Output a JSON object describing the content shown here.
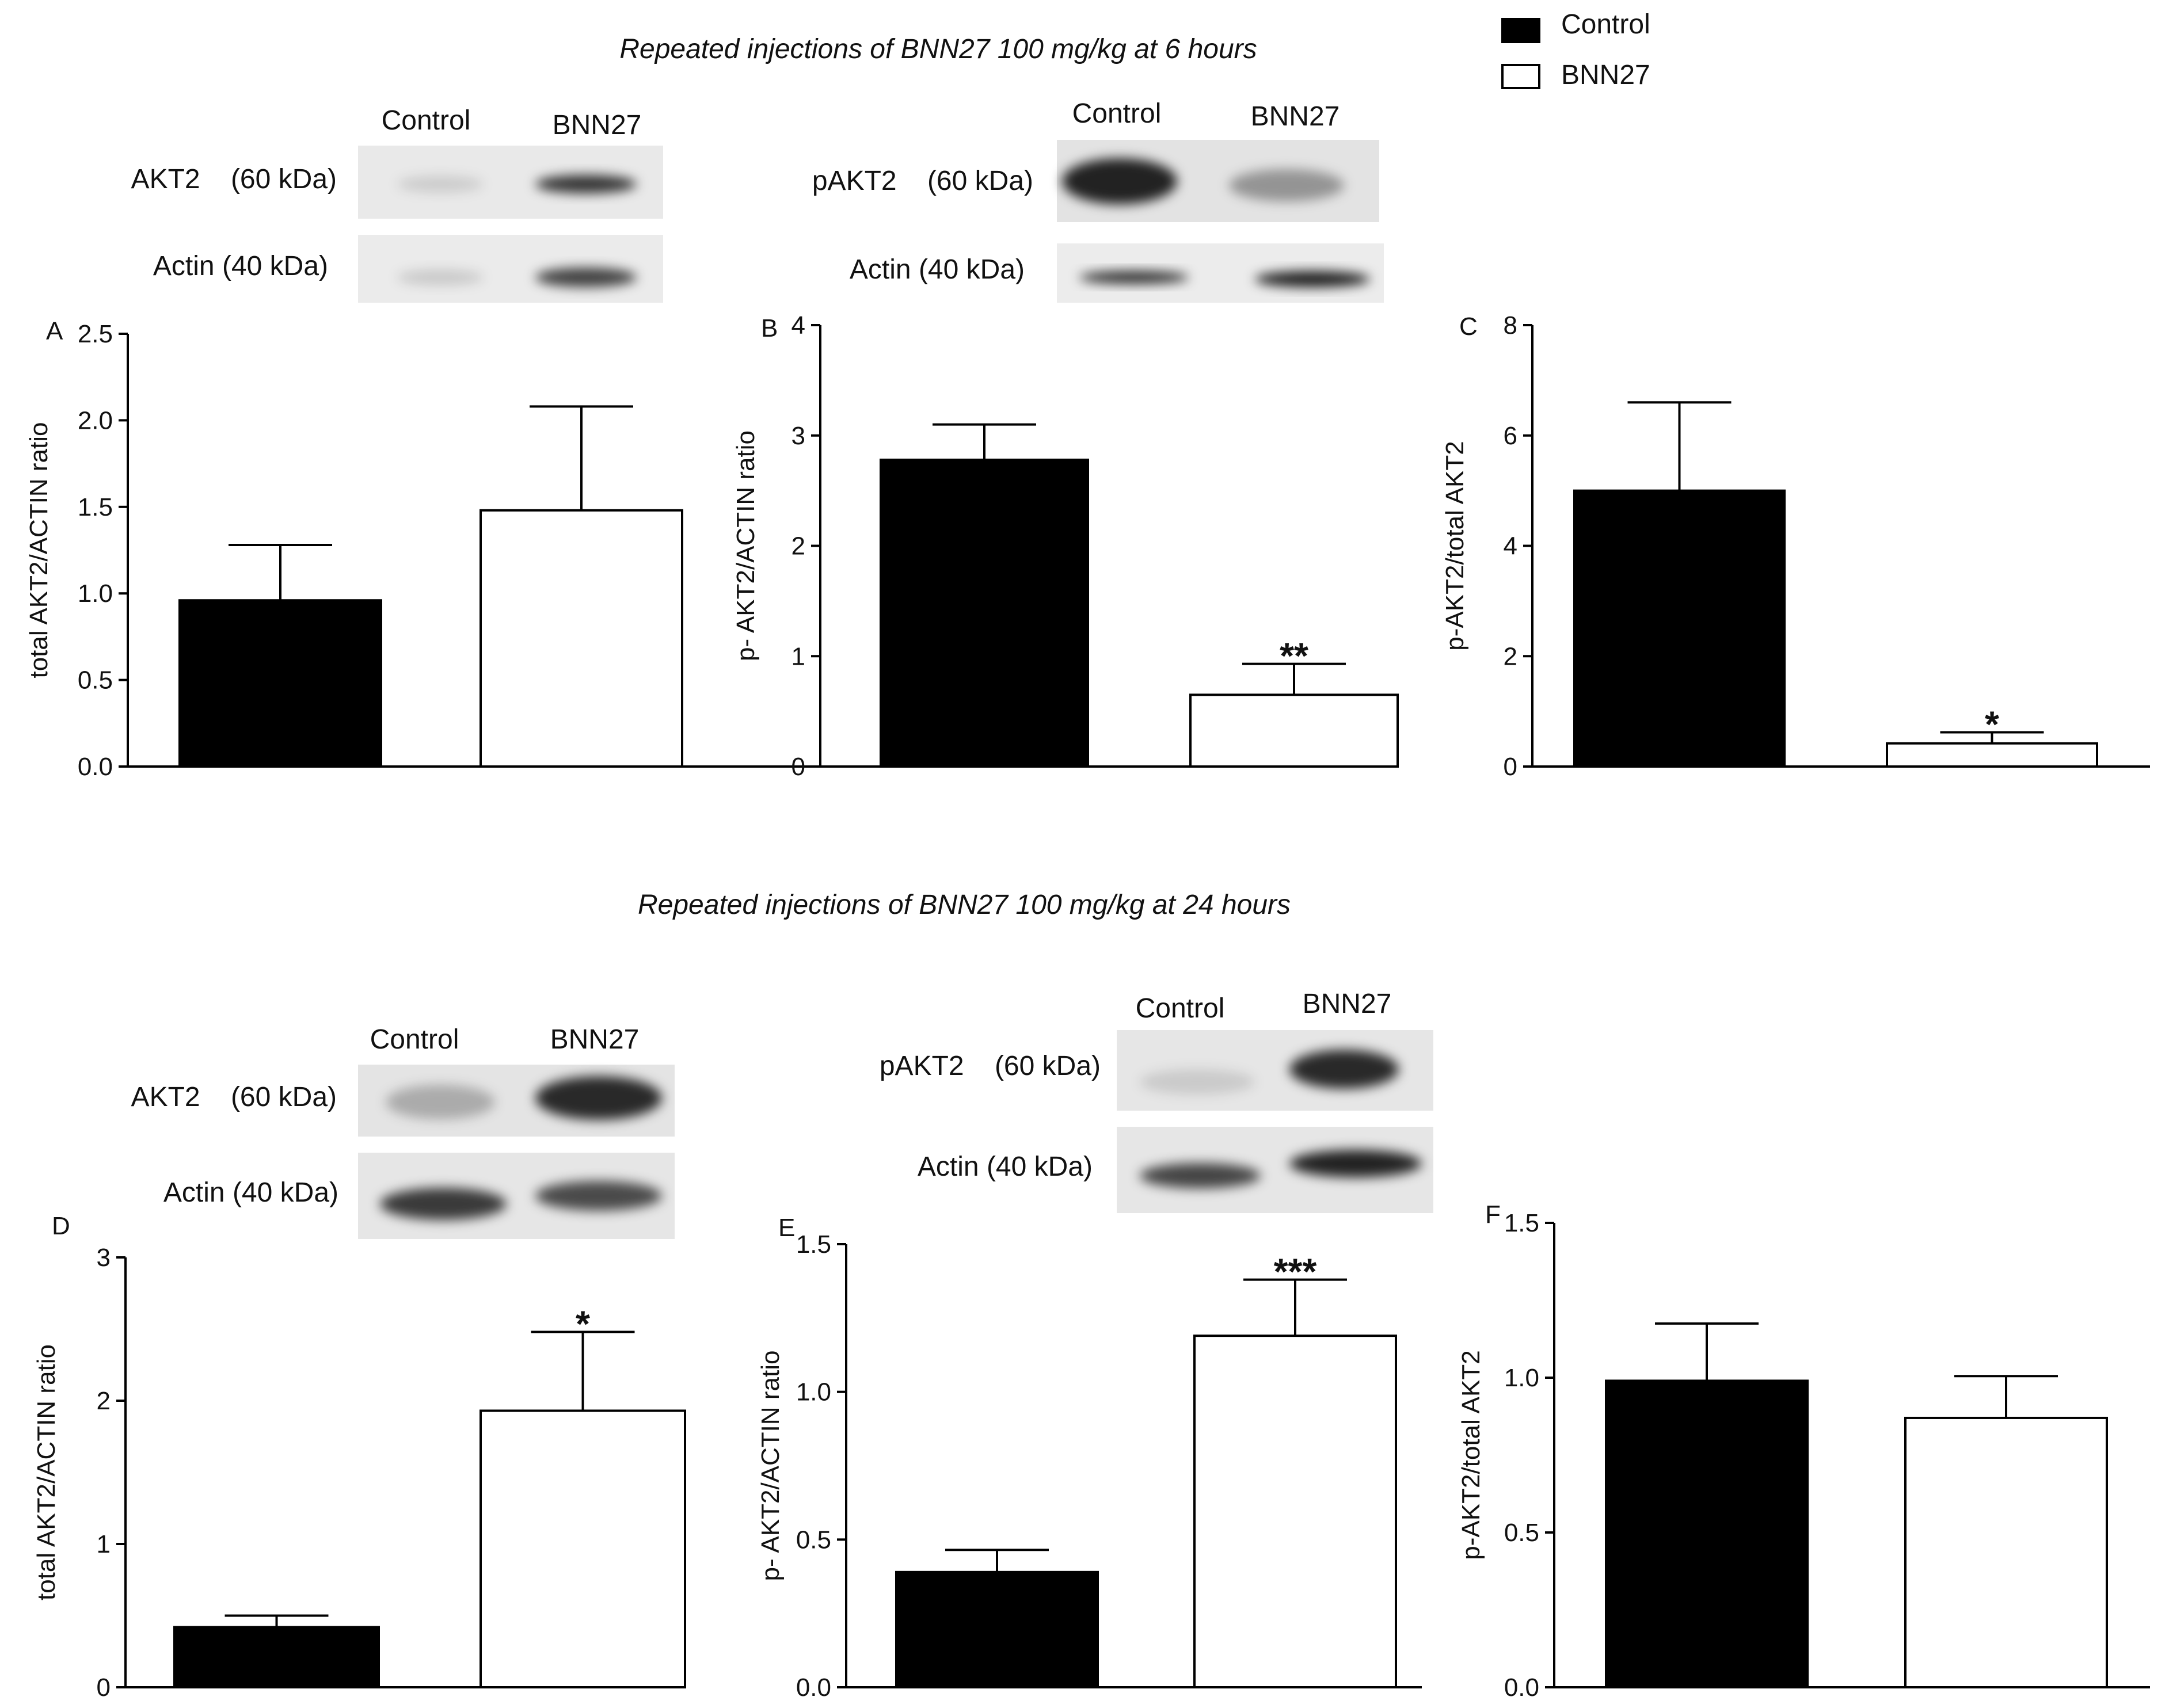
{
  "figure_title_top": "Repeated injections of BNN27 100 mg/kg at 6 hours",
  "figure_title_bottom": "Repeated injections of    BNN27 100 mg/kg at 24 hours",
  "legend": {
    "entries": [
      {
        "label": "Control",
        "fill": "#000000"
      },
      {
        "label": "BNN27",
        "fill": "#ffffff"
      }
    ]
  },
  "blots": [
    {
      "id": "blot-akt2-6h",
      "lanes": [
        "Control",
        "BNN27"
      ],
      "rows": [
        {
          "label": "AKT2    (60 kDa)",
          "intensity": [
            0.12,
            0.78
          ]
        },
        {
          "label": "Actin (40 kDa)",
          "intensity": [
            0.14,
            0.72
          ]
        }
      ]
    },
    {
      "id": "blot-pakt2-6h",
      "lanes": [
        "Control",
        "BNN27"
      ],
      "rows": [
        {
          "label": "pAKT2    (60 kDa)",
          "intensity": [
            0.85,
            0.35
          ]
        },
        {
          "label": "Actin (40 kDa)",
          "intensity": [
            0.82,
            0.88
          ]
        }
      ]
    },
    {
      "id": "blot-akt2-24h",
      "lanes": [
        "Control",
        "BNN27"
      ],
      "rows": [
        {
          "label": "AKT2    (60 kDa)",
          "intensity": [
            0.25,
            0.82
          ]
        },
        {
          "label": "Actin (40 kDa)",
          "intensity": [
            0.75,
            0.68
          ]
        }
      ]
    },
    {
      "id": "blot-pakt2-24h",
      "lanes": [
        "Control",
        "BNN27"
      ],
      "rows": [
        {
          "label": "pAKT2    (60 kDa)",
          "intensity": [
            0.12,
            0.82
          ]
        },
        {
          "label": "Actin (40 kDa)",
          "intensity": [
            0.7,
            0.85
          ]
        }
      ]
    }
  ],
  "chart_data": [
    {
      "panel": "A",
      "type": "bar",
      "title": "",
      "xlabel": "",
      "ylabel": "total AKT2/ACTIN ratio",
      "categories": [
        "Control",
        "BNN27"
      ],
      "series": [
        {
          "name": "ratio",
          "values": [
            0.96,
            1.48
          ]
        }
      ],
      "errors": [
        0.32,
        0.6
      ],
      "significance": [
        "",
        ""
      ],
      "ylim": [
        0,
        2.5
      ],
      "yticks": [
        "0.0",
        "0.5",
        "1.0",
        "1.5",
        "2.0",
        "2.5"
      ],
      "grid": false
    },
    {
      "panel": "B",
      "type": "bar",
      "title": "",
      "xlabel": "",
      "ylabel": "p- AKT2/ACTIN ratio",
      "categories": [
        "Control",
        "BNN27"
      ],
      "series": [
        {
          "name": "ratio",
          "values": [
            2.78,
            0.65
          ]
        }
      ],
      "errors": [
        0.32,
        0.28
      ],
      "significance": [
        "",
        "**"
      ],
      "ylim": [
        0,
        4
      ],
      "yticks": [
        "0",
        "1",
        "2",
        "3",
        "4"
      ],
      "grid": false
    },
    {
      "panel": "C",
      "type": "bar",
      "title": "",
      "xlabel": "",
      "ylabel": "p-AKT2/total AKT2",
      "categories": [
        "Control",
        "BNN27"
      ],
      "series": [
        {
          "name": "ratio",
          "values": [
            5.0,
            0.42
          ]
        }
      ],
      "errors": [
        1.6,
        0.2
      ],
      "significance": [
        "",
        "*"
      ],
      "ylim": [
        0,
        8
      ],
      "yticks": [
        "0",
        "2",
        "4",
        "6",
        "8"
      ],
      "grid": false
    },
    {
      "panel": "D",
      "type": "bar",
      "title": "",
      "xlabel": "",
      "ylabel": "total AKT2/ACTIN ratio",
      "categories": [
        "Control",
        "BNN27"
      ],
      "series": [
        {
          "name": "ratio",
          "values": [
            0.42,
            1.93
          ]
        }
      ],
      "errors": [
        0.08,
        0.55
      ],
      "significance": [
        "",
        "*"
      ],
      "ylim": [
        0,
        3
      ],
      "yticks": [
        "0",
        "1",
        "2",
        "3"
      ],
      "grid": false
    },
    {
      "panel": "E",
      "type": "bar",
      "title": "",
      "xlabel": "",
      "ylabel": "p- AKT2/ACTIN ratio",
      "categories": [
        "Control",
        "BNN27"
      ],
      "series": [
        {
          "name": "ratio",
          "values": [
            0.39,
            1.19
          ]
        }
      ],
      "errors": [
        0.075,
        0.19
      ],
      "significance": [
        "",
        "***"
      ],
      "ylim": [
        0,
        1.5
      ],
      "yticks": [
        "0.0",
        "0.5",
        "1.0",
        "1.5"
      ],
      "grid": false
    },
    {
      "panel": "F",
      "type": "bar",
      "title": "",
      "xlabel": "",
      "ylabel": "p-AKT2/total AKT2",
      "categories": [
        "Control",
        "BNN27"
      ],
      "series": [
        {
          "name": "ratio",
          "values": [
            0.99,
            0.87
          ]
        }
      ],
      "errors": [
        0.185,
        0.135
      ],
      "significance": [
        "",
        ""
      ],
      "ylim": [
        0,
        1.5
      ],
      "yticks": [
        "0.0",
        "0.5",
        "1.0",
        "1.5"
      ],
      "grid": false
    }
  ]
}
